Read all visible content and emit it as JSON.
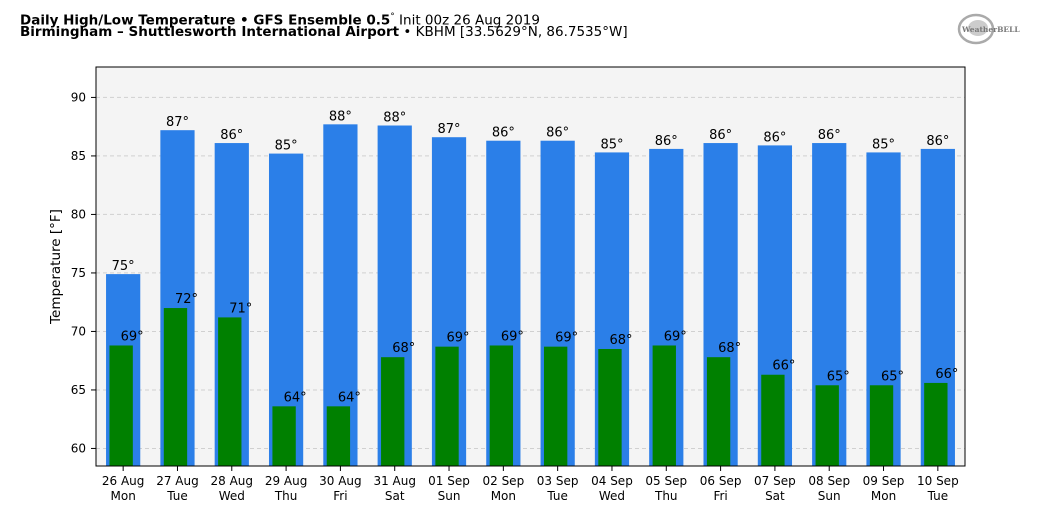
{
  "header": {
    "title_bold": "Daily High/Low Temperature • GFS Ensemble 0.5",
    "title_deg": "°",
    "title_rest": " Init 00z 26 Aug 2019",
    "location_bold": "Birmingham – Shuttlesworth International Airport",
    "location_rest": " • KBHM [33.5629°N, 86.7535°W]"
  },
  "logo": {
    "text": "WeatherBELL",
    "icon": "weatherbell-logo"
  },
  "colors": {
    "high": "#2b7fe8",
    "low": "#008000",
    "plot_bg": "#f4f4f4",
    "grid": "#d0d0d0"
  },
  "chart_data": {
    "type": "bar",
    "title": "Daily High/Low Temperature • GFS Ensemble 0.5° Init 00z 26 Aug 2019",
    "xlabel": "",
    "ylabel": "Temperature [°F]",
    "ylim": [
      58.5,
      92.6
    ],
    "yticks": [
      60,
      65,
      70,
      75,
      80,
      85,
      90
    ],
    "grid": true,
    "categories": [
      "26 Aug",
      "27 Aug",
      "28 Aug",
      "29 Aug",
      "30 Aug",
      "31 Aug",
      "01 Sep",
      "02 Sep",
      "03 Sep",
      "04 Sep",
      "05 Sep",
      "06 Sep",
      "07 Sep",
      "08 Sep",
      "09 Sep",
      "10 Sep"
    ],
    "weekdays": [
      "Mon",
      "Tue",
      "Wed",
      "Thu",
      "Fri",
      "Sat",
      "Sun",
      "Mon",
      "Tue",
      "Wed",
      "Thu",
      "Fri",
      "Sat",
      "Sun",
      "Mon",
      "Tue"
    ],
    "series": [
      {
        "name": "High",
        "values": [
          74.9,
          87.2,
          86.1,
          85.2,
          87.7,
          87.6,
          86.6,
          86.3,
          86.3,
          85.3,
          85.6,
          86.1,
          85.9,
          86.1,
          85.3,
          85.6
        ],
        "labels": [
          "75°",
          "87°",
          "86°",
          "85°",
          "88°",
          "88°",
          "87°",
          "86°",
          "86°",
          "85°",
          "86°",
          "86°",
          "86°",
          "86°",
          "85°",
          "86°"
        ]
      },
      {
        "name": "Low",
        "values": [
          68.8,
          72.0,
          71.2,
          63.6,
          63.6,
          67.8,
          68.7,
          68.8,
          68.7,
          68.5,
          68.8,
          67.8,
          66.3,
          65.4,
          65.4,
          65.6
        ],
        "labels": [
          "69°",
          "72°",
          "71°",
          "64°",
          "64°",
          "68°",
          "69°",
          "69°",
          "69°",
          "68°",
          "69°",
          "68°",
          "66°",
          "65°",
          "65°",
          "66°"
        ]
      }
    ]
  }
}
